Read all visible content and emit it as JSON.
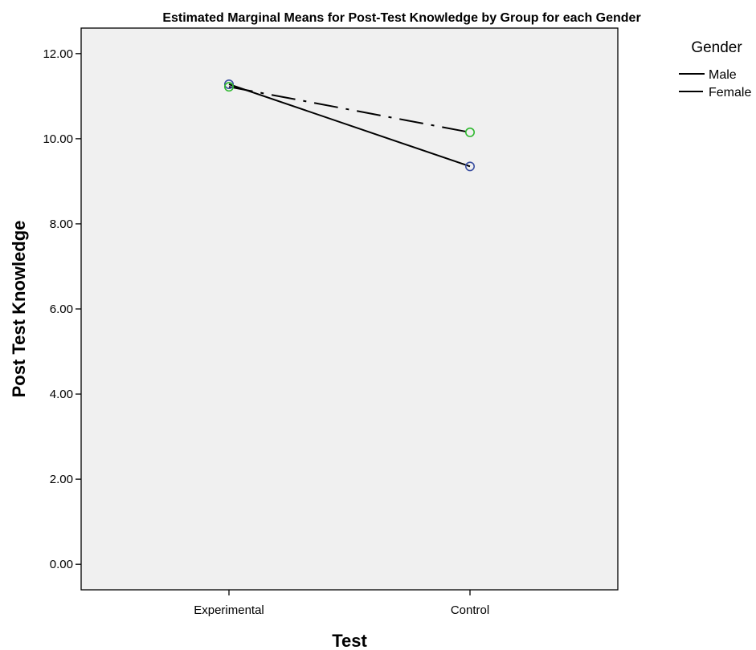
{
  "chart_data": {
    "type": "line",
    "title": "Estimated Marginal Means for Post-Test Knowledge by Group for each Gender",
    "xlabel": "Test",
    "ylabel": "Post Test Knowledge",
    "categories": [
      "Experimental",
      "Control"
    ],
    "ylim": [
      -0.6,
      12.6
    ],
    "yticks": [
      "0.00",
      "2.00",
      "4.00",
      "6.00",
      "8.00",
      "10.00",
      "12.00"
    ],
    "grid": false,
    "legend": {
      "title": "Gender",
      "placement": "top-right"
    },
    "series": [
      {
        "name": "Male",
        "values": [
          11.28,
          9.35
        ],
        "line_style": "solid",
        "marker_color": "#3b4fa0"
      },
      {
        "name": "Female",
        "values": [
          11.22,
          10.15
        ],
        "line_style": "dash-dot",
        "marker_color": "#2eb82e"
      }
    ],
    "colors": {
      "plot_background": "#f0f0f0",
      "line": "#000000"
    }
  }
}
